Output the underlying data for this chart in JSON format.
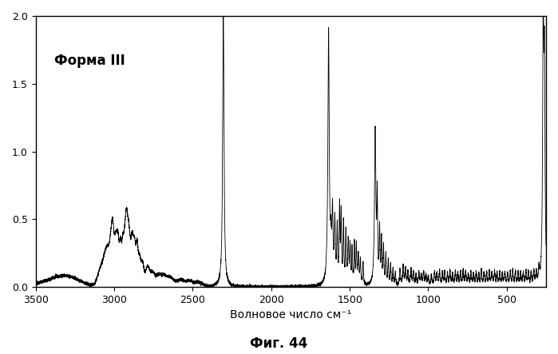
{
  "title_annotation": "Форма III",
  "xlabel": "Волновое число см⁻¹",
  "figure_caption": "Фиг. 44",
  "xlim": [
    3500,
    250
  ],
  "ylim": [
    0.0,
    2.0
  ],
  "yticks": [
    0.0,
    0.5,
    1.0,
    1.5,
    2.0
  ],
  "xticks": [
    3500,
    3000,
    2500,
    2000,
    1500,
    1000,
    500
  ],
  "line_color": "#000000",
  "background_color": "#ffffff",
  "annotation_fontsize": 12,
  "axis_fontsize": 10,
  "caption_fontsize": 12
}
